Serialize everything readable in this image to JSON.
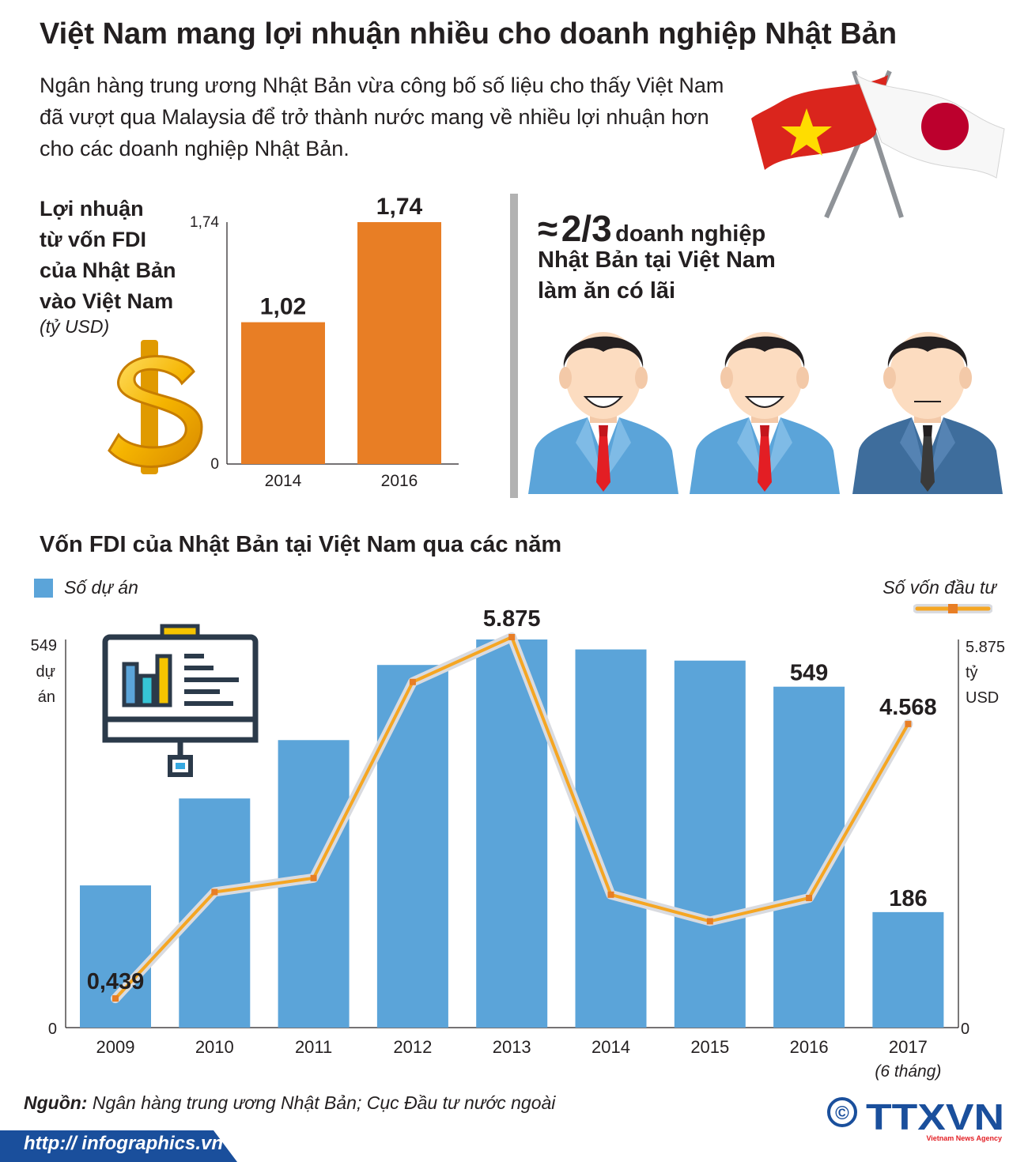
{
  "title": "Việt Nam mang lợi nhuận nhiều cho doanh nghiệp Nhật Bản",
  "intro": "Ngân hàng trung ương Nhật Bản vừa công bố số liệu cho thấy Việt Nam đã vượt qua Malaysia để trở thành nước mang về nhiều lợi nhuận hơn cho các doanh nghiệp Nhật Bản.",
  "icons": {
    "flags": "vietnam-japan-crossed-flags-icon",
    "dollar": "dollar-sign-icon",
    "person_happy": "smiling-businessman-icon",
    "person_neutral": "neutral-businessman-icon",
    "presentation": "presentation-board-icon"
  },
  "stat": {
    "approx": "≈",
    "number": "2/3",
    "line1": "doanh nghiệp",
    "line2": "Nhật Bản tại Việt Nam",
    "line3": "làm ăn có lãi"
  },
  "colors": {
    "orange_bar": "#e87e25",
    "blue_bar": "#5ba4d9",
    "line": "#f5a623",
    "line_halo": "#d9dbe0",
    "vn_red": "#da251d",
    "vn_star": "#ffdd00",
    "jp_red": "#bc002d",
    "ttxvn_blue": "#1a4f9c"
  },
  "chart_data": [
    {
      "type": "bar",
      "label_lines": [
        "Lợi nhuận",
        "từ vốn FDI",
        "của Nhật Bản",
        "vào Việt Nam"
      ],
      "unit": "(tỷ USD)",
      "categories": [
        "2014",
        "2016"
      ],
      "values": [
        1.02,
        1.74
      ],
      "value_labels": [
        "1,02",
        "1,74"
      ],
      "y_ticks": [
        "0",
        "1,74"
      ],
      "ylim": [
        0,
        1.74
      ]
    },
    {
      "type": "bar",
      "title": "Vốn FDI của Nhật Bản tại Việt Nam qua các năm",
      "categories": [
        "2009",
        "2010",
        "2011",
        "2012",
        "2013",
        "2014",
        "2015",
        "2016",
        "2017"
      ],
      "category_note": "(6 tháng)",
      "series": [
        {
          "name": "Số dự án",
          "type": "bar",
          "values": [
            229,
            369,
            463,
            584,
            625,
            609,
            591,
            549,
            186
          ],
          "labels": {
            "7": "549",
            "8": "186"
          }
        },
        {
          "name": "Số vốn đầu tư",
          "type": "line",
          "values": [
            0.439,
            2.04,
            2.25,
            5.2,
            5.875,
            2.0,
            1.6,
            1.95,
            4.568
          ],
          "labels": {
            "0": "0,439",
            "4": "5.875",
            "8": "4.568"
          }
        }
      ],
      "y_left": {
        "ticks": [
          "0",
          "549"
        ],
        "unit_lines": [
          "dự",
          "án"
        ]
      },
      "y_right": {
        "ticks": [
          "0",
          "5.875"
        ],
        "unit_lines": [
          "tỷ",
          "USD"
        ]
      }
    }
  ],
  "source": {
    "prefix": "Nguồn:",
    "text": " Ngân hàng trung ương Nhật Bản; Cục Đầu tư nước ngoài"
  },
  "url": "http:// infographics.vn",
  "logo": {
    "copyright": "©",
    "name": "TTXVN",
    "tagline": "Vietnam News Agency"
  }
}
